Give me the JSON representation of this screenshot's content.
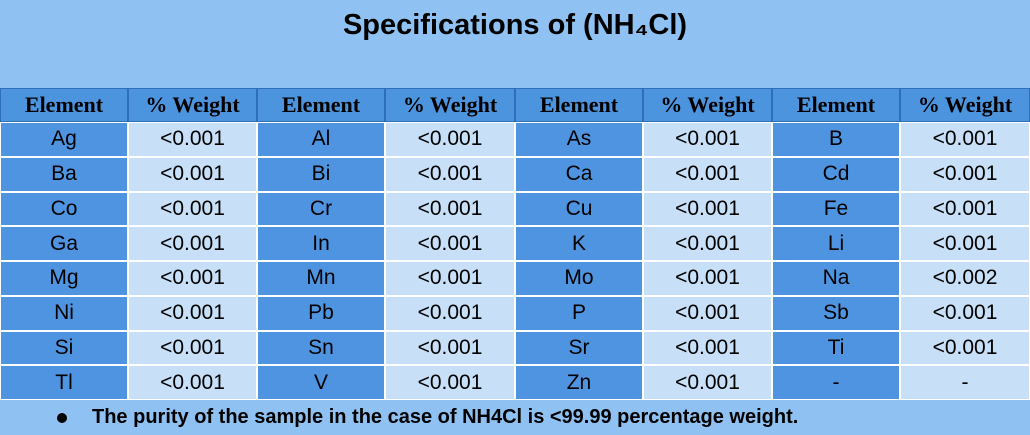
{
  "title": "Specifications of (NH₄Cl)",
  "table": {
    "header": [
      "Element",
      "% Weight",
      "Element",
      "% Weight",
      "Element",
      "% Weight",
      "Element",
      "% Weight"
    ],
    "rows": [
      [
        "Ag",
        "<0.001",
        "Al",
        "<0.001",
        "As",
        "<0.001",
        "B",
        "<0.001"
      ],
      [
        "Ba",
        "<0.001",
        "Bi",
        "<0.001",
        "Ca",
        "<0.001",
        "Cd",
        "<0.001"
      ],
      [
        "Co",
        "<0.001",
        "Cr",
        "<0.001",
        "Cu",
        "<0.001",
        "Fe",
        "<0.001"
      ],
      [
        "Ga",
        "<0.001",
        "In",
        "<0.001",
        "K",
        "<0.001",
        "Li",
        "<0.001"
      ],
      [
        "Mg",
        "<0.001",
        "Mn",
        "<0.001",
        "Mo",
        "<0.001",
        "Na",
        "<0.002"
      ],
      [
        "Ni",
        "<0.001",
        "Pb",
        "<0.001",
        "P",
        "<0.001",
        "Sb",
        "<0.001"
      ],
      [
        "Si",
        "<0.001",
        "Sn",
        "<0.001",
        "Sr",
        "<0.001",
        "Ti",
        "<0.001"
      ],
      [
        "Tl",
        "<0.001",
        "V",
        "<0.001",
        "Zn",
        "<0.001",
        "-",
        "-"
      ]
    ]
  },
  "note": "The purity of the sample in the case of NH4Cl is <99.99 percentage weight."
}
